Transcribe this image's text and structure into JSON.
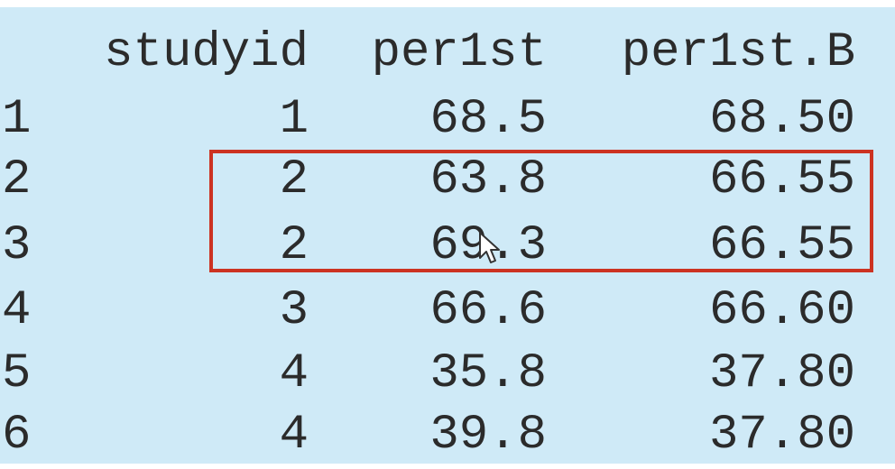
{
  "table": {
    "headers": [
      "studyid",
      "per1st",
      "per1st.B"
    ],
    "rows": [
      {
        "index": "1",
        "studyid": "1",
        "per1st": "68.5",
        "per1st_B": "68.50"
      },
      {
        "index": "2",
        "studyid": "2",
        "per1st": "63.8",
        "per1st_B": "66.55"
      },
      {
        "index": "3",
        "studyid": "2",
        "per1st": "69.3",
        "per1st_B": "66.55"
      },
      {
        "index": "4",
        "studyid": "3",
        "per1st": "66.6",
        "per1st_B": "66.60"
      },
      {
        "index": "5",
        "studyid": "4",
        "per1st": "35.8",
        "per1st_B": "37.80"
      },
      {
        "index": "6",
        "studyid": "4",
        "per1st": "39.8",
        "per1st_B": "37.80"
      }
    ]
  },
  "highlight": {
    "color": "#cc3322",
    "rows": [
      "2",
      "3"
    ]
  },
  "background_color": "#cfeaf7",
  "cursor": {
    "icon": "mouse-pointer-icon"
  }
}
